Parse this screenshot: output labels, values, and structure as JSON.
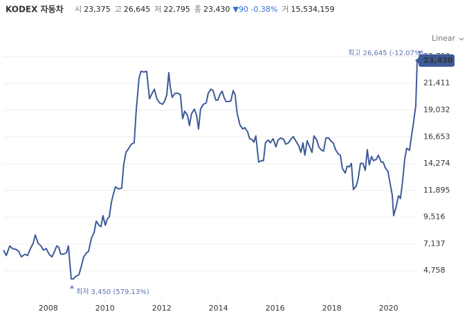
{
  "chart_data": {
    "type": "line",
    "title": "KODEX 자동차",
    "stats": [
      {
        "label": "시",
        "value": "23,375"
      },
      {
        "label": "고",
        "value": "26,645"
      },
      {
        "label": "저",
        "value": "22,795"
      },
      {
        "label": "종",
        "value": "23,430"
      },
      {
        "label": "▼",
        "value": "90 -0.38%"
      },
      {
        "label": "거",
        "value": "15,534,159"
      }
    ],
    "scale": "Linear",
    "annotations": {
      "high": "최고 26,645 (-12.07%)",
      "low": "최저 3,450 (579.13%)",
      "last": "23,430"
    },
    "color": "#3d5a98",
    "xlim": [
      2006.42,
      2021.01
    ],
    "xticks": [
      2008,
      2010,
      2012,
      2014,
      2016,
      2018,
      2020
    ],
    "ylim": [
      2130,
      24400
    ],
    "yticks": [
      {
        "value": 4758,
        "label": "4,758"
      },
      {
        "value": 7137,
        "label": "7,137"
      },
      {
        "value": 9516,
        "label": "9,516"
      },
      {
        "value": 11895,
        "label": "11,895"
      },
      {
        "value": 14274,
        "label": "14,274"
      },
      {
        "value": 16653,
        "label": "16,653"
      },
      {
        "value": 19032,
        "label": "19,032"
      },
      {
        "value": 21411,
        "label": "21,411"
      },
      {
        "value": 23790,
        "label": "23,790"
      }
    ],
    "grid": true,
    "x": [
      2006.42,
      2006.52,
      2006.64,
      2006.74,
      2006.86,
      2006.96,
      2007.05,
      2007.18,
      2007.27,
      2007.37,
      2007.47,
      2007.54,
      2007.64,
      2007.74,
      2007.83,
      2007.93,
      2008.03,
      2008.13,
      2008.2,
      2008.3,
      2008.37,
      2008.44,
      2008.54,
      2008.64,
      2008.71,
      2008.81,
      2008.88,
      2008.98,
      2009.08,
      2009.15,
      2009.25,
      2009.35,
      2009.42,
      2009.52,
      2009.62,
      2009.69,
      2009.79,
      2009.86,
      2009.93,
      2010.01,
      2010.08,
      2010.15,
      2010.23,
      2010.3,
      2010.37,
      2010.47,
      2010.59,
      2010.66,
      2010.74,
      2010.84,
      2010.93,
      2011.03,
      2011.1,
      2011.2,
      2011.27,
      2011.37,
      2011.47,
      2011.57,
      2011.64,
      2011.74,
      2011.83,
      2011.93,
      2012.03,
      2012.1,
      2012.18,
      2012.25,
      2012.3,
      2012.37,
      2012.47,
      2012.57,
      2012.66,
      2012.74,
      2012.81,
      2012.91,
      2012.98,
      2013.05,
      2013.15,
      2013.23,
      2013.3,
      2013.37,
      2013.47,
      2013.57,
      2013.64,
      2013.74,
      2013.81,
      2013.91,
      2013.98,
      2014.05,
      2014.13,
      2014.2,
      2014.27,
      2014.37,
      2014.44,
      2014.52,
      2014.59,
      2014.66,
      2014.76,
      2014.86,
      2014.93,
      2015.03,
      2015.1,
      2015.18,
      2015.25,
      2015.32,
      2015.42,
      2015.52,
      2015.59,
      2015.66,
      2015.76,
      2015.83,
      2015.93,
      2016.03,
      2016.1,
      2016.2,
      2016.3,
      2016.37,
      2016.47,
      2016.57,
      2016.64,
      2016.74,
      2016.83,
      2016.91,
      2016.98,
      2017.05,
      2017.13,
      2017.2,
      2017.3,
      2017.37,
      2017.47,
      2017.54,
      2017.64,
      2017.71,
      2017.79,
      2017.88,
      2017.98,
      2018.05,
      2018.13,
      2018.22,
      2018.3,
      2018.37,
      2018.47,
      2018.54,
      2018.62,
      2018.69,
      2018.76,
      2018.86,
      2018.93,
      2019.01,
      2019.1,
      2019.18,
      2019.25,
      2019.32,
      2019.4,
      2019.47,
      2019.57,
      2019.64,
      2019.74,
      2019.81,
      2019.88,
      2019.98,
      2020.05,
      2020.13,
      2020.18,
      2020.27,
      2020.35,
      2020.42,
      2020.49,
      2020.57,
      2020.64,
      2020.74,
      2020.81,
      2020.88,
      2020.96,
      2021.01
    ],
    "values": [
      6591,
      6102,
      6958,
      6714,
      6652,
      6469,
      5980,
      6225,
      6102,
      6714,
      7202,
      7936,
      7202,
      6958,
      6591,
      6714,
      6225,
      5980,
      6347,
      6958,
      6836,
      6225,
      6225,
      6347,
      6958,
      4025,
      4025,
      4269,
      4391,
      5002,
      5980,
      6347,
      6469,
      7630,
      8180,
      9158,
      8791,
      8669,
      9647,
      8791,
      9341,
      9525,
      10869,
      11602,
      12213,
      12030,
      12091,
      14169,
      15269,
      15636,
      16002,
      16124,
      18936,
      21869,
      22480,
      22419,
      22480,
      20036,
      20402,
      20891,
      20036,
      19669,
      19547,
      19791,
      20402,
      22358,
      21135,
      20158,
      20524,
      20524,
      20402,
      18263,
      18936,
      18569,
      17652,
      18691,
      19119,
      18569,
      17347,
      19119,
      19547,
      19669,
      20524,
      20891,
      20769,
      19913,
      19913,
      20402,
      20708,
      20158,
      19791,
      19791,
      19852,
      20769,
      20402,
      18752,
      17713,
      17347,
      17469,
      17102,
      16491,
      16430,
      16186,
      16736,
      14413,
      14536,
      14536,
      16124,
      16369,
      16124,
      16491,
      15758,
      16369,
      16552,
      16430,
      16002,
      16124,
      16491,
      16674,
      16247,
      15880,
      15269,
      16124,
      15024,
      16308,
      15880,
      15269,
      16736,
      16369,
      15758,
      15452,
      15391,
      16552,
      16552,
      16247,
      16124,
      15513,
      15147,
      15024,
      13863,
      13436,
      14047,
      13986,
      14291,
      11969,
      12275,
      12947,
      14291,
      14291,
      13680,
      15513,
      14169,
      14902,
      14536,
      14658,
      15024,
      14413,
      14413,
      13925,
      13558,
      12580,
      11480,
      9647,
      10441,
      11419,
      11175,
      12580,
      14658,
      15636,
      15452,
      16736,
      17897,
      19424,
      23430
    ]
  }
}
